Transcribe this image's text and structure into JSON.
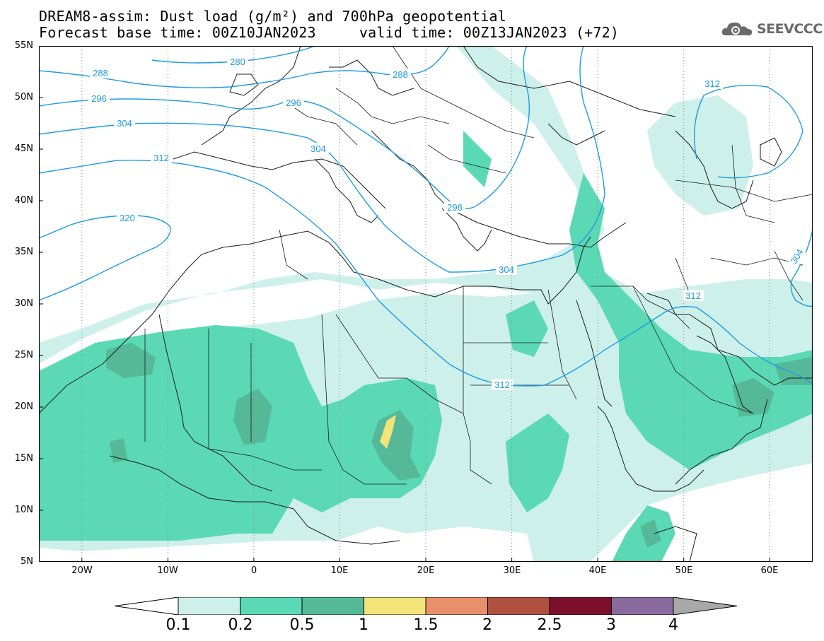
{
  "title": {
    "line1": "DREAM8-assim: Dust load (g/m²) and 700hPa geopotential",
    "line2": "Forecast base time: 00Z10JAN2023     valid time: 00Z13JAN2023 (+72)"
  },
  "brand": {
    "name": "SEEVCCC",
    "icon": "cloud-gear-icon"
  },
  "axes": {
    "lat_labels": [
      "55N",
      "50N",
      "45N",
      "40N",
      "35N",
      "30N",
      "25N",
      "20N",
      "15N",
      "10N",
      "5N"
    ],
    "lon_labels": [
      "20W",
      "10W",
      "0",
      "10E",
      "20E",
      "30E",
      "40E",
      "50E",
      "60E"
    ]
  },
  "contour_labels": [
    "280",
    "288",
    "288",
    "296",
    "296",
    "304",
    "304",
    "304",
    "304",
    "312",
    "312",
    "312",
    "312",
    "320",
    "296"
  ],
  "colorbar": {
    "labels": [
      "0.1",
      "0.2",
      "0.5",
      "1",
      "1.5",
      "2",
      "2.5",
      "3",
      "4"
    ],
    "colors": [
      "#cdf0ea",
      "#5ad9b4",
      "#55b998",
      "#f3e47a",
      "#e8906c",
      "#b0503f",
      "#7c0f2c",
      "#8a6a9c",
      "#a8a8a8"
    ]
  },
  "colors": {
    "dust_light": "#cdf0ea",
    "dust_mid": "#5ad9b4",
    "dust_dark": "#55b998",
    "dust_yellow": "#f3e47a",
    "contour": "#1e9be6",
    "coast": "#1a1a1a"
  }
}
